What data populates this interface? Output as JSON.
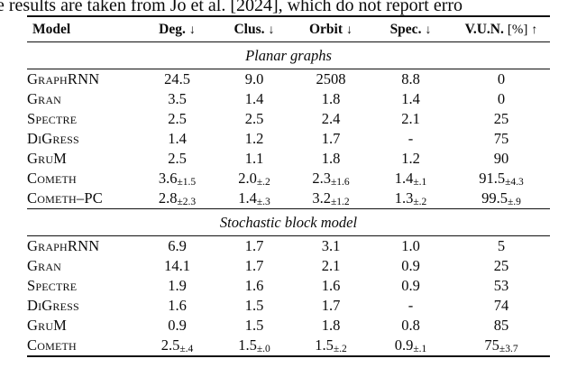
{
  "context_line": "e results are taken from Jo et al. [2024], which do not report erro",
  "plus_minus": "±",
  "colors": {
    "text": "#0a0a0a",
    "background": "#ffffff",
    "rule": "#111111"
  },
  "table": {
    "columns": [
      {
        "label": "Model"
      },
      {
        "label": "Deg.",
        "arrow": "↓"
      },
      {
        "label": "Clus.",
        "arrow": "↓"
      },
      {
        "label": "Orbit",
        "arrow": "↓"
      },
      {
        "label": "Spec.",
        "arrow": "↓"
      },
      {
        "label": "V.U.N.",
        "unit": "[%]",
        "arrow": "↑"
      }
    ],
    "sections": [
      {
        "title": "Planar graphs",
        "rows": [
          {
            "model": "GraphRNN",
            "cells": [
              {
                "v": "24.5"
              },
              {
                "v": "9.0"
              },
              {
                "v": "2508"
              },
              {
                "v": "8.8"
              },
              {
                "v": "0"
              }
            ]
          },
          {
            "model": "Gran",
            "cells": [
              {
                "v": "3.5"
              },
              {
                "v": "1.4"
              },
              {
                "v": "1.8"
              },
              {
                "v": "1.4"
              },
              {
                "v": "0"
              }
            ]
          },
          {
            "model": "Spectre",
            "cells": [
              {
                "v": "2.5"
              },
              {
                "v": "2.5"
              },
              {
                "v": "2.4"
              },
              {
                "v": "2.1"
              },
              {
                "v": "25"
              }
            ]
          },
          {
            "model": "DiGress",
            "cells": [
              {
                "v": "1.4"
              },
              {
                "v": "1.2"
              },
              {
                "v": "1.7"
              },
              {
                "v": "-"
              },
              {
                "v": "75"
              }
            ]
          },
          {
            "model": "GruM",
            "cells": [
              {
                "v": "2.5"
              },
              {
                "v": "1.1"
              },
              {
                "v": "1.8"
              },
              {
                "v": "1.2"
              },
              {
                "v": "90"
              }
            ]
          },
          {
            "model": "Cometh",
            "cells": [
              {
                "v": "3.6",
                "e": "1.5"
              },
              {
                "v": "2.0",
                "e": ".2"
              },
              {
                "v": "2.3",
                "e": "1.6"
              },
              {
                "v": "1.4",
                "e": ".1"
              },
              {
                "v": "91.5",
                "e": "4.3"
              }
            ]
          },
          {
            "model": "Cometh–PC",
            "cells": [
              {
                "v": "2.8",
                "e": "2.3"
              },
              {
                "v": "1.4",
                "e": ".3"
              },
              {
                "v": "3.2",
                "e": "1.2"
              },
              {
                "v": "1.3",
                "e": ".2"
              },
              {
                "v": "99.5",
                "e": ".9"
              }
            ]
          }
        ]
      },
      {
        "title": "Stochastic block model",
        "rows": [
          {
            "model": "GraphRNN",
            "cells": [
              {
                "v": "6.9"
              },
              {
                "v": "1.7"
              },
              {
                "v": "3.1"
              },
              {
                "v": "1.0"
              },
              {
                "v": "5"
              }
            ]
          },
          {
            "model": "Gran",
            "cells": [
              {
                "v": "14.1"
              },
              {
                "v": "1.7"
              },
              {
                "v": "2.1"
              },
              {
                "v": "0.9"
              },
              {
                "v": "25"
              }
            ]
          },
          {
            "model": "Spectre",
            "cells": [
              {
                "v": "1.9"
              },
              {
                "v": "1.6"
              },
              {
                "v": "1.6"
              },
              {
                "v": "0.9"
              },
              {
                "v": "53"
              }
            ]
          },
          {
            "model": "DiGress",
            "cells": [
              {
                "v": "1.6"
              },
              {
                "v": "1.5"
              },
              {
                "v": "1.7"
              },
              {
                "v": "-"
              },
              {
                "v": "74"
              }
            ]
          },
          {
            "model": "GruM",
            "cells": [
              {
                "v": "0.9"
              },
              {
                "v": "1.5"
              },
              {
                "v": "1.8"
              },
              {
                "v": "0.8"
              },
              {
                "v": "85"
              }
            ]
          },
          {
            "model": "Cometh",
            "cells": [
              {
                "v": "2.5",
                "e": ".4"
              },
              {
                "v": "1.5",
                "e": ".0"
              },
              {
                "v": "1.5",
                "e": ".2"
              },
              {
                "v": "0.9",
                "e": ".1"
              },
              {
                "v": "75",
                "e": "3.7"
              }
            ]
          }
        ]
      }
    ]
  }
}
